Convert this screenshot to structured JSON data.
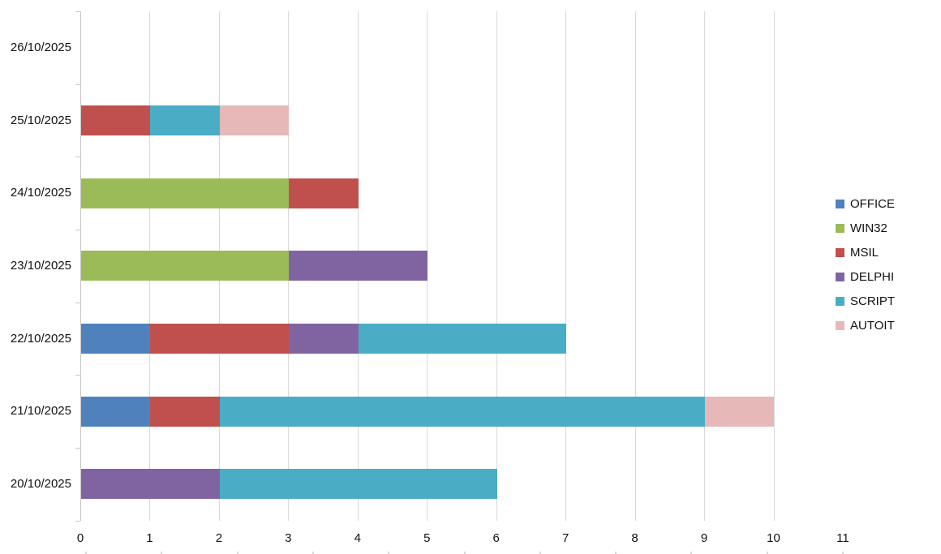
{
  "chart_data": {
    "type": "bar",
    "orientation": "horizontal",
    "stacked": true,
    "title": "",
    "xlabel": "",
    "ylabel": "",
    "categories_top_to_bottom": [
      "26/10/2025",
      "25/10/2025",
      "24/10/2025",
      "23/10/2025",
      "22/10/2025",
      "21/10/2025",
      "20/10/2025"
    ],
    "series": [
      {
        "name": "OFFICE",
        "color": "#4F81BD",
        "values_top_to_bottom": [
          0,
          0,
          0,
          0,
          1,
          1,
          0
        ]
      },
      {
        "name": "WIN32",
        "color": "#9BBB59",
        "values_top_to_bottom": [
          0,
          0,
          3,
          3,
          0,
          0,
          0
        ]
      },
      {
        "name": "MSIL",
        "color": "#C0504D",
        "values_top_to_bottom": [
          0,
          1,
          1,
          0,
          2,
          1,
          0
        ]
      },
      {
        "name": "DELPHI",
        "color": "#8064A2",
        "values_top_to_bottom": [
          0,
          0,
          0,
          2,
          1,
          0,
          2
        ]
      },
      {
        "name": "SCRIPT",
        "color": "#4BACC6",
        "values_top_to_bottom": [
          0,
          1,
          0,
          0,
          3,
          7,
          4
        ]
      },
      {
        "name": "AUTOIT",
        "color": "#E6B9B8",
        "values_top_to_bottom": [
          0,
          1,
          0,
          0,
          0,
          1,
          0
        ]
      }
    ],
    "category_totals_top_to_bottom": [
      0,
      3,
      4,
      5,
      7,
      10,
      6
    ],
    "x_ticks": [
      "0",
      "1",
      "2",
      "3",
      "4",
      "5",
      "6",
      "7",
      "8",
      "9",
      "10",
      "11"
    ],
    "xlim": [
      0,
      11
    ],
    "gridline_ticks": [
      1,
      2,
      3,
      4,
      5,
      6,
      7,
      8,
      9,
      10
    ],
    "grid": "vertical-on",
    "legend_position": "right",
    "legend_entries": [
      "OFFICE",
      "WIN32",
      "MSIL",
      "DELPHI",
      "SCRIPT",
      "AUTOIT"
    ],
    "colors": {
      "gridline": "#D9D9D9",
      "axis": "#C6C6C6",
      "text": "#111111",
      "background": "#FFFFFF"
    }
  }
}
